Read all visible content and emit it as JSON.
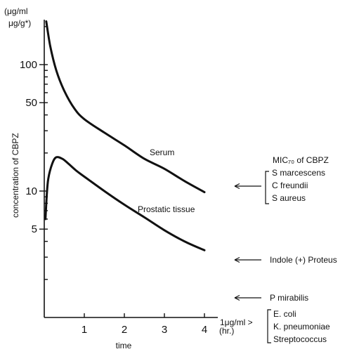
{
  "chart_data": {
    "type": "line",
    "xlabel": "time",
    "x_unit": "(hr.)",
    "ylabel": "concentration of CBPZ",
    "y_unit_top": "(μg/ml",
    "y_unit_bottom": "μg/g*)",
    "y_scale": "log",
    "xlim": [
      0,
      4
    ],
    "ylim": [
      1,
      300
    ],
    "x_ticks": [
      "1",
      "2",
      "3",
      "4"
    ],
    "y_ticks": [
      "5",
      "10",
      "50",
      "100"
    ],
    "series": [
      {
        "name": "Serum",
        "x": [
          0.05,
          0.15,
          0.3,
          0.5,
          0.75,
          1.0,
          1.5,
          2.0,
          2.5,
          3.0,
          3.5,
          4.0
        ],
        "values": [
          220,
          140,
          90,
          62,
          45,
          37,
          29,
          23,
          18,
          15,
          12,
          9.8
        ]
      },
      {
        "name": "Prostatic tissue",
        "x": [
          0.03,
          0.06,
          0.1,
          0.2,
          0.3,
          0.45,
          0.6,
          0.8,
          1.0,
          1.5,
          2.0,
          2.5,
          3.0,
          3.5,
          4.0
        ],
        "values": [
          6.0,
          9.0,
          12.5,
          16.5,
          18.5,
          18.0,
          16.5,
          14.5,
          13.0,
          10.0,
          7.8,
          6.2,
          4.9,
          4.0,
          3.4
        ]
      }
    ],
    "mic_title": "MIC₇₀ of CBPZ",
    "mic_groups": [
      {
        "value": 10,
        "organisms": [
          "S marcescens",
          "C freundii",
          "S aureus"
        ]
      },
      {
        "value": 3,
        "organisms": [
          "Indole (+) Proteus"
        ]
      },
      {
        "value": 1.8,
        "organisms": [
          "P mirabilis"
        ]
      },
      {
        "value": 1,
        "value_label": "1μg/ml >",
        "organisms": [
          "E. coli",
          "K. pneumoniae",
          "Streptococcus"
        ]
      }
    ]
  }
}
